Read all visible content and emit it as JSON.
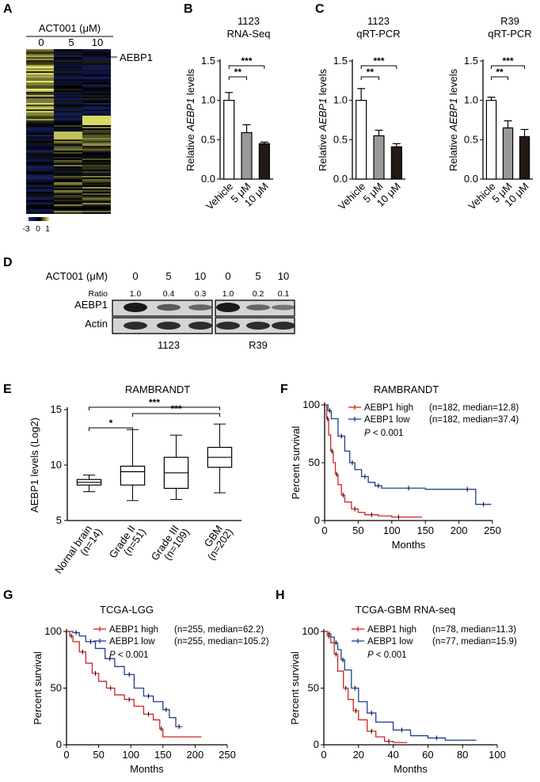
{
  "panels": {
    "A": {
      "letter": "A",
      "treatment_label": "ACT001 (μM)",
      "columns": [
        "0",
        "5",
        "10"
      ],
      "gene_label": "AEBP1",
      "scale_labels": [
        "-3",
        "0",
        "1"
      ],
      "colors": {
        "low": "#1e2a78",
        "mid": "#000000",
        "high": "#f0f070"
      }
    },
    "D": {
      "letter": "D",
      "treatment_label": "ACT001 (μM)",
      "doses": [
        "0",
        "5",
        "10",
        "0",
        "5",
        "10"
      ],
      "ratio_label": "Ratio",
      "ratios": [
        "1.0",
        "0.4",
        "0.3",
        "1.0",
        "0.2",
        "0.1"
      ],
      "rows": [
        "AEBP1",
        "Actin"
      ],
      "cell_lines": [
        "1123",
        "R39"
      ]
    }
  },
  "chart_data": [
    {
      "panel": "B",
      "type": "bar",
      "title_lines": [
        "1123",
        "RNA-Seq"
      ],
      "ylabel_pre": "Relative ",
      "ylabel_gene": "AEBP1",
      "ylabel_post": " levels",
      "categories": [
        "Vehicle",
        "5 μM",
        "10 μM"
      ],
      "values": [
        1.0,
        0.59,
        0.45
      ],
      "errors": [
        0.1,
        0.1,
        0.02
      ],
      "bar_colors": [
        "#ffffff",
        "#999999",
        "#231815"
      ],
      "ylim": [
        0,
        1.5
      ],
      "yticks": [
        "0.0",
        "0.5",
        "1.0",
        "1.5"
      ],
      "significance": [
        {
          "from": 0,
          "to": 1,
          "label": "**"
        },
        {
          "from": 0,
          "to": 2,
          "label": "***"
        }
      ]
    },
    {
      "panel": "C",
      "type": "bar",
      "title_lines": [
        "1123",
        "qRT-PCR"
      ],
      "ylabel_pre": "Relative ",
      "ylabel_gene": "AEBP1",
      "ylabel_post": " levels",
      "categories": [
        "Vehicle",
        "5 μM",
        "10 μM"
      ],
      "values": [
        1.0,
        0.55,
        0.41
      ],
      "errors": [
        0.15,
        0.07,
        0.04
      ],
      "bar_colors": [
        "#ffffff",
        "#999999",
        "#231815"
      ],
      "ylim": [
        0,
        1.5
      ],
      "yticks": [
        "0.0",
        "0.5",
        "1.0",
        "1.5"
      ],
      "significance": [
        {
          "from": 0,
          "to": 1,
          "label": "**"
        },
        {
          "from": 0,
          "to": 2,
          "label": "***"
        }
      ]
    },
    {
      "panel": "C2",
      "type": "bar",
      "title_lines": [
        "R39",
        "qRT-PCR"
      ],
      "ylabel_pre": "Relative ",
      "ylabel_gene": "AEBP1",
      "ylabel_post": " levels",
      "categories": [
        "Vehicle",
        "5 μM",
        "10 μM"
      ],
      "values": [
        1.0,
        0.65,
        0.54
      ],
      "errors": [
        0.04,
        0.09,
        0.09
      ],
      "bar_colors": [
        "#ffffff",
        "#999999",
        "#231815"
      ],
      "ylim": [
        0,
        1.5
      ],
      "yticks": [
        "0.0",
        "0.5",
        "1.0",
        "1.5"
      ],
      "significance": [
        {
          "from": 0,
          "to": 1,
          "label": "**"
        },
        {
          "from": 0,
          "to": 2,
          "label": "***"
        }
      ]
    },
    {
      "panel": "E",
      "type": "box",
      "title": "RAMBRANDT",
      "ylabel": "AEBP1 levels (Log2)",
      "categories": [
        [
          "Nornal brain",
          "(n=14)"
        ],
        [
          "Grade II",
          "(n=51)"
        ],
        [
          "Grade III",
          "(n=109)"
        ],
        [
          "GBM",
          "(n=202)"
        ]
      ],
      "boxes": [
        {
          "min": 7.6,
          "q1": 8.2,
          "median": 8.45,
          "q3": 8.7,
          "max": 9.1
        },
        {
          "min": 6.8,
          "q1": 8.2,
          "median": 9.4,
          "q3": 9.9,
          "max": 13.2
        },
        {
          "min": 6.9,
          "q1": 7.9,
          "median": 9.3,
          "q3": 10.7,
          "max": 12.7
        },
        {
          "min": 7.5,
          "q1": 9.8,
          "median": 10.7,
          "q3": 11.6,
          "max": 13.7
        }
      ],
      "ylim": [
        5,
        15
      ],
      "yticks": [
        "5",
        "10",
        "15"
      ],
      "significance": [
        {
          "from": 0,
          "to": 1,
          "label": "*"
        },
        {
          "from": 1,
          "to": 3,
          "label": "***"
        },
        {
          "from": 0,
          "to": 3,
          "label": "***"
        }
      ]
    },
    {
      "panel": "F",
      "type": "line",
      "title": "RAMBRANDT",
      "xlabel": "Months",
      "ylabel": "Percent survival",
      "xlim": [
        0,
        250
      ],
      "ylim": [
        0,
        100
      ],
      "xticks": [
        "0",
        "50",
        "100",
        "150",
        "200",
        "250"
      ],
      "yticks": [
        "0",
        "50",
        "100"
      ],
      "pvalue_italic": "P",
      "pvalue_rest": " < 0.001",
      "series": [
        {
          "name": "AEBP1 high",
          "stats": "(n=182, median=12.8)",
          "color": "#d62020",
          "x": [
            0,
            3,
            6,
            9,
            12.8,
            16,
            20,
            25,
            30,
            40,
            50,
            60,
            80,
            100,
            120,
            145
          ],
          "y": [
            100,
            88,
            74,
            60,
            50,
            40,
            31,
            22,
            16,
            10,
            7,
            5,
            4,
            3,
            3,
            3
          ]
        },
        {
          "name": "AEBP1 low",
          "stats": "(n=182, median=37.4)",
          "color": "#1c3f94",
          "x": [
            0,
            5,
            10,
            20,
            30,
            37.4,
            45,
            55,
            65,
            75,
            85,
            100,
            150,
            200,
            225,
            225,
            248
          ],
          "y": [
            100,
            95,
            88,
            73,
            60,
            50,
            44,
            38,
            33,
            30,
            28,
            28,
            27,
            27,
            27,
            14,
            14
          ]
        }
      ]
    },
    {
      "panel": "G",
      "type": "line",
      "title": "TCGA-LGG",
      "xlabel": "Months",
      "ylabel": "Percent survival",
      "xlim": [
        0,
        250
      ],
      "ylim": [
        0,
        100
      ],
      "xticks": [
        "0",
        "50",
        "100",
        "150",
        "200",
        "250"
      ],
      "yticks": [
        "0",
        "50",
        "100"
      ],
      "pvalue_italic": "P",
      "pvalue_rest": " < 0.001",
      "series": [
        {
          "name": "AEBP1 high",
          "stats": "(n=255, median=62.2)",
          "color": "#d62020",
          "x": [
            0,
            5,
            10,
            20,
            30,
            40,
            50,
            62.2,
            75,
            90,
            105,
            120,
            135,
            145,
            150,
            210
          ],
          "y": [
            100,
            96,
            91,
            82,
            72,
            63,
            56,
            50,
            44,
            40,
            34,
            27,
            22,
            14,
            7,
            7
          ]
        },
        {
          "name": "AEBP1 low",
          "stats": "(n=255, median=105.2)",
          "color": "#1c3f94",
          "x": [
            0,
            10,
            20,
            30,
            45,
            60,
            75,
            90,
            105.2,
            120,
            135,
            150,
            160,
            170,
            180
          ],
          "y": [
            100,
            99,
            96,
            91,
            85,
            76,
            69,
            62,
            50,
            43,
            38,
            31,
            24,
            16,
            16
          ]
        }
      ]
    },
    {
      "panel": "H",
      "type": "line",
      "title": "TCGA-GBM RNA-seq",
      "xlabel": "Months",
      "ylabel": "Percent survival",
      "xlim": [
        0,
        100
      ],
      "ylim": [
        0,
        100
      ],
      "xticks": [
        "0",
        "20",
        "40",
        "60",
        "80",
        "100"
      ],
      "yticks": [
        "0",
        "50",
        "100"
      ],
      "pvalue_italic": "P",
      "pvalue_rest": " < 0.001",
      "series": [
        {
          "name": "AEBP1 high",
          "stats": "(n=78, median=11.3)",
          "color": "#d62020",
          "x": [
            0,
            2,
            4,
            6,
            8,
            11.3,
            14,
            17,
            20,
            25,
            30,
            35,
            40,
            48
          ],
          "y": [
            100,
            96,
            90,
            80,
            65,
            50,
            40,
            30,
            22,
            12,
            7,
            3,
            2,
            2
          ]
        },
        {
          "name": "AEBP1 low",
          "stats": "(n=77, median=15.9)",
          "color": "#1c3f94",
          "x": [
            0,
            2,
            4,
            6,
            8,
            10,
            12,
            15.9,
            20,
            25,
            30,
            40,
            50,
            60,
            70,
            88
          ],
          "y": [
            100,
            98,
            95,
            90,
            84,
            75,
            66,
            50,
            38,
            28,
            20,
            13,
            8,
            6,
            4,
            4
          ]
        }
      ]
    }
  ]
}
